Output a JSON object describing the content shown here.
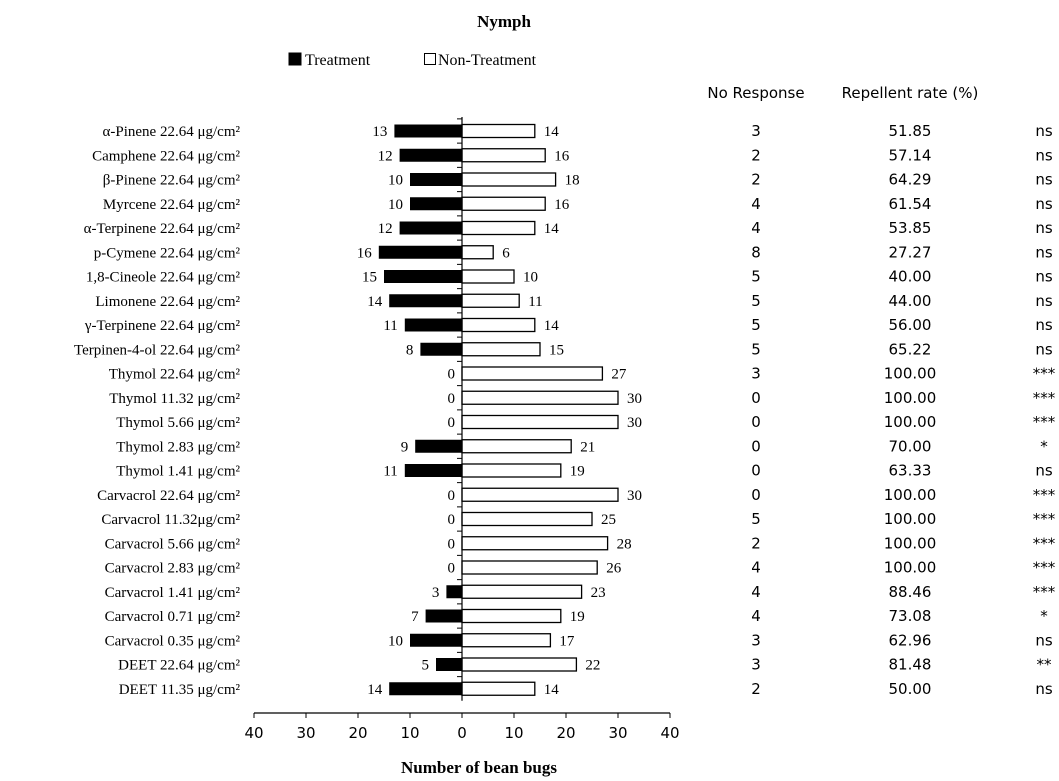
{
  "chart_data": {
    "type": "bar",
    "title": "Nymph",
    "xlabel": "Number of bean bugs",
    "ylabel": "",
    "xlim": [
      -40,
      40
    ],
    "x_ticks": [
      "40",
      "30",
      "20",
      "10",
      "0",
      "10",
      "20",
      "30",
      "40"
    ],
    "legend_placement": "top",
    "grid": false,
    "colors": {
      "treatment": "#000000",
      "non_treatment": "#ffffff",
      "outline": "#000000"
    },
    "column_headers": {
      "no_response": "No Response",
      "repellent_rate": "Repellent rate (%)"
    },
    "series": [
      {
        "name": "Treatment",
        "direction": "left",
        "values": [
          13,
          12,
          10,
          10,
          12,
          16,
          15,
          14,
          11,
          8,
          0,
          0,
          0,
          9,
          11,
          0,
          0,
          0,
          0,
          3,
          7,
          10,
          5,
          14
        ]
      },
      {
        "name": "Non-Treatment",
        "direction": "right",
        "values": [
          14,
          16,
          18,
          16,
          14,
          6,
          10,
          11,
          14,
          15,
          27,
          30,
          30,
          21,
          19,
          30,
          25,
          28,
          26,
          23,
          19,
          17,
          22,
          14
        ]
      }
    ],
    "rows": [
      {
        "label": "α-Pinene 22.64 μg/cm²",
        "treatment": 13,
        "non_treatment": 14,
        "no_response": "3",
        "repellent_rate": "51.85",
        "significance": "ns"
      },
      {
        "label": "Camphene 22.64 μg/cm²",
        "treatment": 12,
        "non_treatment": 16,
        "no_response": "2",
        "repellent_rate": "57.14",
        "significance": "ns"
      },
      {
        "label": "β-Pinene 22.64 μg/cm²",
        "treatment": 10,
        "non_treatment": 18,
        "no_response": "2",
        "repellent_rate": "64.29",
        "significance": "ns"
      },
      {
        "label": "Myrcene 22.64 μg/cm²",
        "treatment": 10,
        "non_treatment": 16,
        "no_response": "4",
        "repellent_rate": "61.54",
        "significance": "ns"
      },
      {
        "label": "α-Terpinene 22.64 μg/cm²",
        "treatment": 12,
        "non_treatment": 14,
        "no_response": "4",
        "repellent_rate": "53.85",
        "significance": "ns"
      },
      {
        "label": "p-Cymene 22.64 μg/cm²",
        "treatment": 16,
        "non_treatment": 6,
        "no_response": "8",
        "repellent_rate": "27.27",
        "significance": "ns"
      },
      {
        "label": "1,8-Cineole 22.64 μg/cm²",
        "treatment": 15,
        "non_treatment": 10,
        "no_response": "5",
        "repellent_rate": "40.00",
        "significance": "ns"
      },
      {
        "label": "Limonene 22.64 μg/cm²",
        "treatment": 14,
        "non_treatment": 11,
        "no_response": "5",
        "repellent_rate": "44.00",
        "significance": "ns"
      },
      {
        "label": "γ-Terpinene 22.64 μg/cm²",
        "treatment": 11,
        "non_treatment": 14,
        "no_response": "5",
        "repellent_rate": "56.00",
        "significance": "ns"
      },
      {
        "label": "Terpinen-4-ol 22.64 μg/cm²",
        "treatment": 8,
        "non_treatment": 15,
        "no_response": "5",
        "repellent_rate": "65.22",
        "significance": "ns"
      },
      {
        "label": "Thymol 22.64 μg/cm²",
        "treatment": 0,
        "non_treatment": 27,
        "no_response": "3",
        "repellent_rate": "100.00",
        "significance": "***"
      },
      {
        "label": "Thymol 11.32 μg/cm²",
        "treatment": 0,
        "non_treatment": 30,
        "no_response": "0",
        "repellent_rate": "100.00",
        "significance": "***"
      },
      {
        "label": "Thymol  5.66 μg/cm²",
        "treatment": 0,
        "non_treatment": 30,
        "no_response": "0",
        "repellent_rate": "100.00",
        "significance": "***"
      },
      {
        "label": "Thymol  2.83 μg/cm²",
        "treatment": 9,
        "non_treatment": 21,
        "no_response": "0",
        "repellent_rate": "70.00",
        "significance": "*"
      },
      {
        "label": "Thymol  1.41 μg/cm²",
        "treatment": 11,
        "non_treatment": 19,
        "no_response": "0",
        "repellent_rate": "63.33",
        "significance": "ns"
      },
      {
        "label": "Carvacrol 22.64 μg/cm²",
        "treatment": 0,
        "non_treatment": 30,
        "no_response": "0",
        "repellent_rate": "100.00",
        "significance": "***"
      },
      {
        "label": "Carvacrol  11.32μg/cm²",
        "treatment": 0,
        "non_treatment": 25,
        "no_response": "5",
        "repellent_rate": "100.00",
        "significance": "***"
      },
      {
        "label": "Carvacrol  5.66 μg/cm²",
        "treatment": 0,
        "non_treatment": 28,
        "no_response": "2",
        "repellent_rate": "100.00",
        "significance": "***"
      },
      {
        "label": "Carvacrol  2.83 μg/cm²",
        "treatment": 0,
        "non_treatment": 26,
        "no_response": "4",
        "repellent_rate": "100.00",
        "significance": "***"
      },
      {
        "label": "Carvacrol  1.41 μg/cm²",
        "treatment": 3,
        "non_treatment": 23,
        "no_response": "4",
        "repellent_rate": "88.46",
        "significance": "***"
      },
      {
        "label": "Carvacrol  0.71 μg/cm²",
        "treatment": 7,
        "non_treatment": 19,
        "no_response": "4",
        "repellent_rate": "73.08",
        "significance": "*"
      },
      {
        "label": "Carvacrol  0.35 μg/cm²",
        "treatment": 10,
        "non_treatment": 17,
        "no_response": "3",
        "repellent_rate": "62.96",
        "significance": "ns"
      },
      {
        "label": "DEET 22.64 μg/cm²",
        "treatment": 5,
        "non_treatment": 22,
        "no_response": "3",
        "repellent_rate": "81.48",
        "significance": "**"
      },
      {
        "label": "DEET 11.35 μg/cm²",
        "treatment": 14,
        "non_treatment": 14,
        "no_response": "2",
        "repellent_rate": "50.00",
        "significance": "ns"
      }
    ]
  }
}
